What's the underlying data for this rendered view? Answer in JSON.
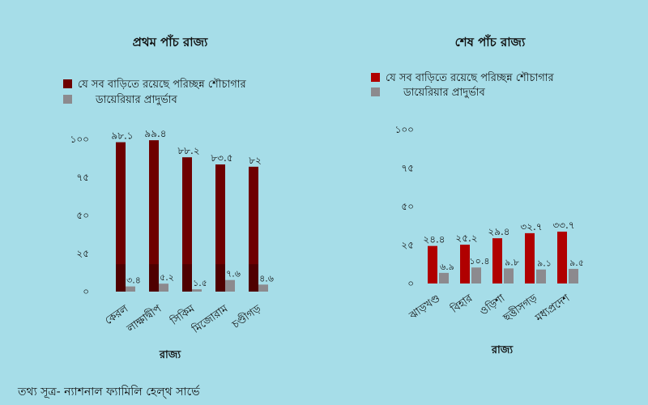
{
  "source": "তথ্য সূত্র- ন্যাশনাল ফ্যামিলি হেল্থ সার্ভে",
  "colors": {
    "background": "#a6dde8",
    "sanitation_left": "#6e0000",
    "sanitation_right": "#b00000",
    "diarrhea": "#8c8a8e"
  },
  "chart_data": [
    {
      "type": "bar",
      "title": "প্রথম পাঁচ রাজ্য",
      "xlabel": "রাজ্য",
      "ylabel": "",
      "ylim": [
        0,
        100
      ],
      "yticks": [
        "০",
        "২৫",
        "৫০",
        "৭৫",
        "১০০"
      ],
      "legend_position": "top",
      "categories": [
        "কেরল",
        "লাক্ষাদ্বীপ",
        "সিকিম",
        "মিজোরাম",
        "চণ্ডীগড়"
      ],
      "series": [
        {
          "name": "যে সব বাড়িতে রয়েছে পরিচ্ছন্ন শৌচাগার",
          "values": [
            98.1,
            99.4,
            88.2,
            83.5,
            82
          ],
          "labels": [
            "৯৮.১",
            "৯৯.৪",
            "৮৮.২",
            "৮৩.৫",
            "৮২"
          ]
        },
        {
          "name": "ডায়েরিয়ার প্রাদুর্ভাব",
          "values": [
            3.4,
            5.2,
            1.5,
            7.6,
            4.6
          ],
          "labels": [
            "৩.৪",
            "৫.২",
            "১.৫",
            "৭.৬",
            "৪.৬"
          ]
        }
      ]
    },
    {
      "type": "bar",
      "title": "শেষ পাঁচ রাজ্য",
      "xlabel": "রাজ্য",
      "ylabel": "",
      "ylim": [
        0,
        100
      ],
      "yticks": [
        "০",
        "২৫",
        "৫০",
        "৭৫",
        "১০০"
      ],
      "legend_position": "top",
      "categories": [
        "ঝাড়খণ্ড",
        "বিহার",
        "ওড়িশা",
        "ছত্তীসগড়",
        "মধ্যপ্রদেশ"
      ],
      "series": [
        {
          "name": "যে সব বাড়িতে রয়েছে পরিচ্ছন্ন শৌচাগার",
          "values": [
            24.4,
            25.2,
            29.4,
            32.7,
            33.7
          ],
          "labels": [
            "২৪.৪",
            "২৫.২",
            "২৯.৪",
            "৩২.৭",
            "৩৩.৭"
          ]
        },
        {
          "name": "ডায়েরিয়ার প্রাদুর্ভাব",
          "values": [
            6.9,
            10.4,
            9.8,
            9.1,
            9.5
          ],
          "labels": [
            "৬.৯",
            "১০.৪",
            "৯.৮",
            "৯.১",
            "৯.৫"
          ]
        }
      ]
    }
  ]
}
